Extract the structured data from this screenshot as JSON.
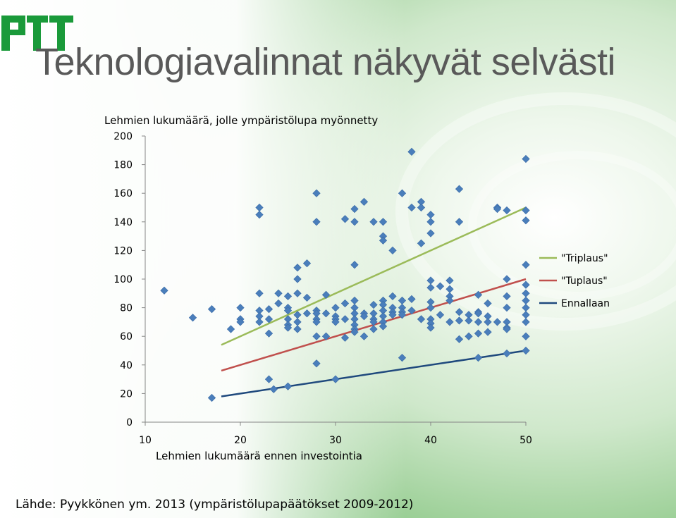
{
  "slide": {
    "title": "Teknologiavalinnat näkyvät selvästi",
    "source": "Lähde: Pyykkönen ym. 2013 (ympäristölupapäätökset 2009-2012)",
    "logo_alt": "PTT"
  },
  "colors": {
    "brand_green": "#1a9a3a",
    "marker": "#4a7ebb",
    "triplaus": "#9bbb59",
    "tuplaus": "#c0504d",
    "ennallaan": "#1f497d"
  },
  "chart_data": {
    "type": "scatter",
    "title": "Lehmien lukumäärä, jolle ympäristölupa myönnetty",
    "xlabel": "Lehmien lukumäärä ennen investointia",
    "ylabel": "",
    "xlim": [
      10,
      50
    ],
    "ylim": [
      0,
      200
    ],
    "xticks": [
      10,
      20,
      30,
      40,
      50
    ],
    "yticks": [
      0,
      20,
      40,
      60,
      80,
      100,
      120,
      140,
      160,
      180,
      200
    ],
    "grid": false,
    "legend_position": "right",
    "points": [
      [
        12,
        92
      ],
      [
        15,
        73
      ],
      [
        17,
        79
      ],
      [
        17,
        17
      ],
      [
        19,
        65
      ],
      [
        20,
        80
      ],
      [
        20,
        72
      ],
      [
        20,
        70
      ],
      [
        22,
        150
      ],
      [
        22,
        145
      ],
      [
        22,
        90
      ],
      [
        22,
        78
      ],
      [
        22,
        74
      ],
      [
        22,
        70
      ],
      [
        23,
        79
      ],
      [
        23,
        72
      ],
      [
        23,
        62
      ],
      [
        23,
        30
      ],
      [
        23.5,
        23
      ],
      [
        24,
        90
      ],
      [
        24,
        83
      ],
      [
        25,
        88
      ],
      [
        25,
        80
      ],
      [
        25,
        78
      ],
      [
        25,
        72
      ],
      [
        25,
        68
      ],
      [
        25,
        66
      ],
      [
        25,
        25
      ],
      [
        26,
        108
      ],
      [
        26,
        100
      ],
      [
        26,
        90
      ],
      [
        26,
        75
      ],
      [
        26,
        70
      ],
      [
        26,
        65
      ],
      [
        27,
        111
      ],
      [
        27,
        87
      ],
      [
        27,
        76
      ],
      [
        28,
        160
      ],
      [
        28,
        140
      ],
      [
        28,
        78
      ],
      [
        28,
        76
      ],
      [
        28,
        72
      ],
      [
        28,
        70
      ],
      [
        28,
        60
      ],
      [
        28,
        41
      ],
      [
        29,
        89
      ],
      [
        29,
        76
      ],
      [
        29,
        60
      ],
      [
        30,
        80
      ],
      [
        30,
        74
      ],
      [
        30,
        72
      ],
      [
        30,
        70
      ],
      [
        30,
        30
      ],
      [
        31,
        142
      ],
      [
        31,
        83
      ],
      [
        31,
        72
      ],
      [
        31,
        59
      ],
      [
        32,
        149
      ],
      [
        32,
        140
      ],
      [
        32,
        110
      ],
      [
        32,
        85
      ],
      [
        32,
        80
      ],
      [
        32,
        76
      ],
      [
        32,
        72
      ],
      [
        32,
        68
      ],
      [
        32,
        65
      ],
      [
        32,
        63
      ],
      [
        33,
        154
      ],
      [
        33,
        76
      ],
      [
        33,
        74
      ],
      [
        33,
        60
      ],
      [
        34,
        140
      ],
      [
        34,
        82
      ],
      [
        34,
        76
      ],
      [
        34,
        72
      ],
      [
        34,
        70
      ],
      [
        34,
        65
      ],
      [
        35,
        140
      ],
      [
        35,
        130
      ],
      [
        35,
        127
      ],
      [
        35,
        85
      ],
      [
        35,
        82
      ],
      [
        35,
        78
      ],
      [
        35,
        74
      ],
      [
        35,
        70
      ],
      [
        35,
        67
      ],
      [
        36,
        120
      ],
      [
        36,
        88
      ],
      [
        36,
        80
      ],
      [
        36,
        77
      ],
      [
        36,
        75
      ],
      [
        37,
        160
      ],
      [
        37,
        85
      ],
      [
        37,
        80
      ],
      [
        37,
        77
      ],
      [
        37,
        75
      ],
      [
        37,
        45
      ],
      [
        38,
        189
      ],
      [
        38,
        150
      ],
      [
        38,
        86
      ],
      [
        38,
        78
      ],
      [
        39,
        154
      ],
      [
        39,
        150
      ],
      [
        39,
        125
      ],
      [
        39,
        72
      ],
      [
        40,
        145
      ],
      [
        40,
        140
      ],
      [
        40,
        132
      ],
      [
        40,
        99
      ],
      [
        40,
        94
      ],
      [
        40,
        84
      ],
      [
        40,
        80
      ],
      [
        40,
        72
      ],
      [
        40,
        69
      ],
      [
        40,
        66
      ],
      [
        41,
        95
      ],
      [
        41,
        75
      ],
      [
        42,
        99
      ],
      [
        42,
        93
      ],
      [
        42,
        88
      ],
      [
        42,
        85
      ],
      [
        42,
        70
      ],
      [
        43,
        163
      ],
      [
        43,
        140
      ],
      [
        43,
        77
      ],
      [
        43,
        71
      ],
      [
        43,
        58
      ],
      [
        44,
        75
      ],
      [
        44,
        71
      ],
      [
        44,
        60
      ],
      [
        45,
        89
      ],
      [
        45,
        77
      ],
      [
        45,
        76
      ],
      [
        45,
        70
      ],
      [
        45,
        62
      ],
      [
        45,
        45
      ],
      [
        46,
        83
      ],
      [
        46,
        74
      ],
      [
        46,
        70
      ],
      [
        46,
        63
      ],
      [
        47,
        150
      ],
      [
        47,
        149
      ],
      [
        47,
        70
      ],
      [
        48,
        148
      ],
      [
        48,
        100
      ],
      [
        48,
        88
      ],
      [
        48,
        80
      ],
      [
        48,
        70
      ],
      [
        48,
        66
      ],
      [
        48,
        65
      ],
      [
        48,
        48
      ],
      [
        50,
        184
      ],
      [
        50,
        148
      ],
      [
        50,
        141
      ],
      [
        50,
        110
      ],
      [
        50,
        96
      ],
      [
        50,
        90
      ],
      [
        50,
        85
      ],
      [
        50,
        80
      ],
      [
        50,
        75
      ],
      [
        50,
        70
      ],
      [
        50,
        60
      ],
      [
        50,
        50
      ]
    ],
    "series": [
      {
        "name": "\"Triplaus\"",
        "color": "#9bbb59",
        "x": [
          18,
          50
        ],
        "y": [
          54,
          150
        ]
      },
      {
        "name": "\"Tuplaus\"",
        "color": "#c0504d",
        "x": [
          18,
          50
        ],
        "y": [
          36,
          100
        ]
      },
      {
        "name": "Ennallaan",
        "color": "#1f497d",
        "x": [
          18,
          50
        ],
        "y": [
          18,
          50
        ]
      }
    ]
  }
}
